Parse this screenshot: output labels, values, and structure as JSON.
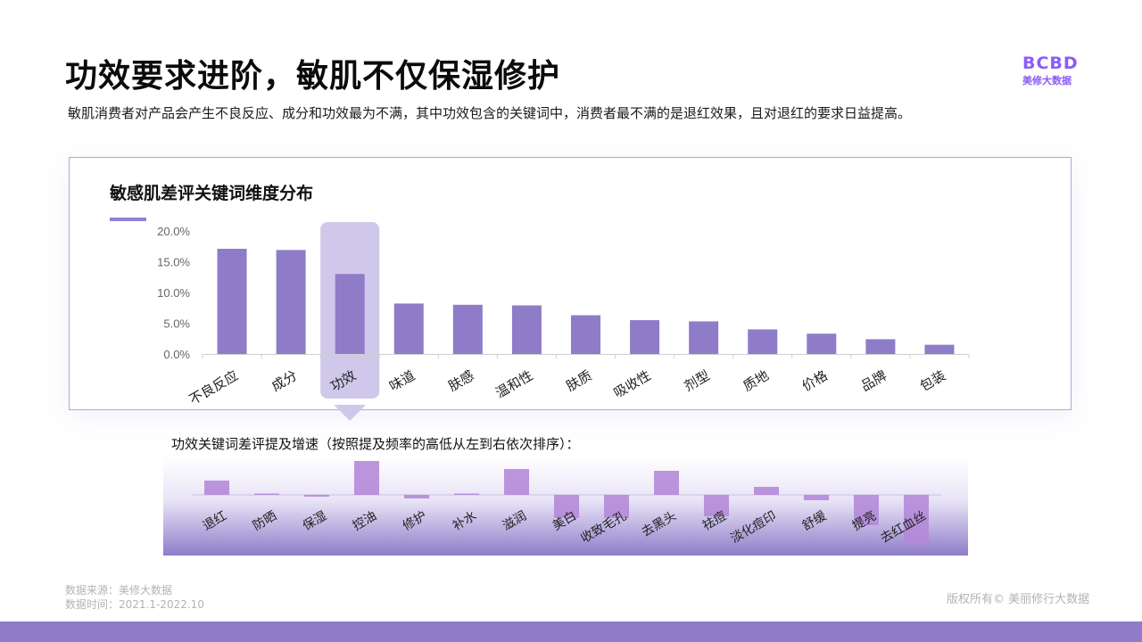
{
  "page": {
    "title": "功效要求进阶，敏肌不仅保湿修护",
    "subtitle": "敏肌消费者对产品会产生不良反应、成分和功效最为不满，其中功效包含的关键词中，消费者最不满的是退红效果，且对退红的要求日益提高。",
    "logo_mark": "BCBD",
    "logo_text": "美修大数据",
    "source_line1": "数据来源：美修大数据",
    "source_line2": "数据时间：2021.1-2022.10",
    "copyright": "版权所有© 美丽修行大数据"
  },
  "colors": {
    "bar": "#8e7cc9",
    "highlight": "#cfc8ea",
    "accent": "#8b5cf6",
    "sub_bar": "#b48ad8"
  },
  "chart_data": [
    {
      "type": "bar",
      "title": "敏感肌差评关键词维度分布",
      "categories": [
        "不良反应",
        "成分",
        "功效",
        "味道",
        "肤感",
        "温和性",
        "肤质",
        "吸收性",
        "剂型",
        "质地",
        "价格",
        "品牌",
        "包装"
      ],
      "values": [
        17.1,
        16.9,
        13.0,
        8.2,
        8.0,
        7.9,
        6.3,
        5.5,
        5.3,
        4.0,
        3.3,
        2.4,
        1.5
      ],
      "ylim": [
        0,
        20
      ],
      "yticks": [
        "0.0%",
        "5.0%",
        "10.0%",
        "15.0%",
        "20.0%"
      ],
      "highlight_category": "功效",
      "grid": false
    },
    {
      "type": "bar",
      "title": "功效关键词差评提及增速（按照提及频率的高低从左到右依次排序）：",
      "categories": [
        "退红",
        "防晒",
        "保湿",
        "控油",
        "修护",
        "补水",
        "滋润",
        "美白",
        "收致毛孔",
        "去黑头",
        "祛痘",
        "淡化痘印",
        "舒缓",
        "提亮",
        "去红血丝"
      ],
      "values": [
        1.6,
        0.1,
        -0.2,
        3.8,
        -0.4,
        0.1,
        2.9,
        -2.6,
        -2.6,
        2.7,
        -2.4,
        0.9,
        -0.6,
        -3.4,
        -5.6
      ],
      "grid": false
    }
  ]
}
